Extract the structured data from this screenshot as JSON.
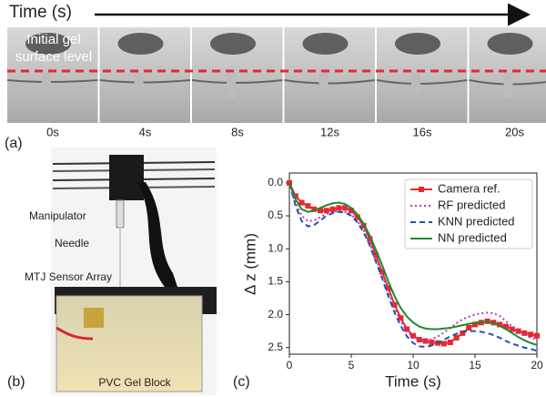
{
  "panel_a": {
    "letter": "(a)",
    "time_label": "Time (s)",
    "overlay": [
      "Initial gel",
      "surface level"
    ],
    "frame_labels": [
      "0s",
      "4s",
      "8s",
      "12s",
      "16s",
      "20s"
    ]
  },
  "panel_b": {
    "letter": "(b)",
    "labels": [
      "Manipulator",
      "Needle",
      "MTJ Sensor Array",
      "PVC Gel Block"
    ]
  },
  "panel_c": {
    "letter": "(c)"
  },
  "chart_data": {
    "type": "line",
    "x_label": "Time (s)",
    "y_label": "Δ z (mm)",
    "xlim": [
      0,
      20
    ],
    "xticks": [
      0,
      5,
      10,
      15,
      20
    ],
    "ylim": [
      -0.15,
      2.6
    ],
    "y_inverted": true,
    "yticks": [
      {
        "value": 0,
        "label": "0.0"
      },
      0.5,
      {
        "value": 1,
        "label": "1.0"
      },
      1.5,
      {
        "value": 2,
        "label": "2.0"
      },
      2.5
    ],
    "legend": "upper right",
    "x": [
      0,
      0.5,
      1,
      1.5,
      2,
      2.5,
      3,
      3.5,
      4,
      4.5,
      5,
      5.5,
      6,
      6.5,
      7,
      7.5,
      8,
      8.5,
      9,
      9.5,
      10,
      10.5,
      11,
      11.5,
      12,
      12.5,
      13,
      13.5,
      14,
      14.5,
      15,
      15.5,
      16,
      16.5,
      17,
      17.5,
      18,
      18.5,
      19,
      19.5,
      20
    ],
    "series": [
      {
        "name": "Camera ref.",
        "color": "#e8282b",
        "style": "solid-marker",
        "values": [
          0,
          0.2,
          0.3,
          0.35,
          0.4,
          0.42,
          0.42,
          0.4,
          0.38,
          0.38,
          0.42,
          0.52,
          0.65,
          0.85,
          1.1,
          1.35,
          1.6,
          1.85,
          2.05,
          2.22,
          2.32,
          2.38,
          2.4,
          2.42,
          2.43,
          2.44,
          2.42,
          2.35,
          2.28,
          2.2,
          2.15,
          2.12,
          2.1,
          2.12,
          2.15,
          2.18,
          2.22,
          2.25,
          2.28,
          2.3,
          2.32
        ]
      },
      {
        "name": "RF predicted",
        "color": "#b23bb8",
        "style": "dotted",
        "values": [
          0,
          0.3,
          0.5,
          0.58,
          0.57,
          0.52,
          0.47,
          0.44,
          0.43,
          0.44,
          0.48,
          0.58,
          0.72,
          0.92,
          1.15,
          1.4,
          1.65,
          1.9,
          2.1,
          2.25,
          2.35,
          2.4,
          2.4,
          2.37,
          2.33,
          2.27,
          2.2,
          2.13,
          2.07,
          2.03,
          2.0,
          1.98,
          1.97,
          1.98,
          2.02,
          2.1,
          2.18,
          2.25,
          2.3,
          2.35,
          2.38
        ]
      },
      {
        "name": "KNN predicted",
        "color": "#2b4fa8",
        "style": "dashed",
        "values": [
          0,
          0.35,
          0.58,
          0.66,
          0.64,
          0.57,
          0.5,
          0.46,
          0.44,
          0.45,
          0.5,
          0.6,
          0.75,
          0.95,
          1.2,
          1.45,
          1.72,
          1.97,
          2.17,
          2.33,
          2.43,
          2.48,
          2.49,
          2.47,
          2.43,
          2.38,
          2.33,
          2.29,
          2.26,
          2.25,
          2.25,
          2.26,
          2.28,
          2.31,
          2.35,
          2.4,
          2.44,
          2.47,
          2.5,
          2.52,
          2.55
        ]
      },
      {
        "name": "NN predicted",
        "color": "#1f8a2e",
        "style": "solid",
        "values": [
          0,
          0.25,
          0.4,
          0.44,
          0.42,
          0.38,
          0.34,
          0.31,
          0.3,
          0.32,
          0.38,
          0.48,
          0.62,
          0.8,
          1.02,
          1.25,
          1.5,
          1.72,
          1.9,
          2.03,
          2.12,
          2.18,
          2.21,
          2.22,
          2.22,
          2.21,
          2.2,
          2.18,
          2.16,
          2.14,
          2.12,
          2.11,
          2.11,
          2.13,
          2.17,
          2.22,
          2.28,
          2.34,
          2.39,
          2.43,
          2.46
        ]
      }
    ]
  }
}
